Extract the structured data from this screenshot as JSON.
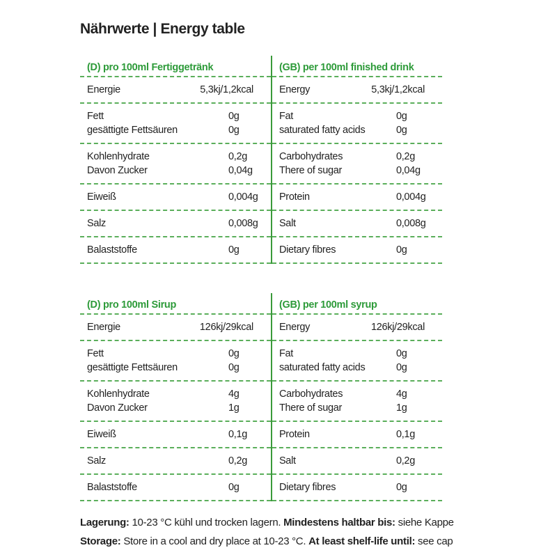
{
  "title": "Nährwerte | Energy table",
  "tables": [
    {
      "columns": [
        {
          "header": "(D) pro 100ml Fertiggetränk",
          "groups": [
            [
              [
                "Energie",
                "5,3kj/1,2kcal"
              ]
            ],
            [
              [
                "Fett",
                "0g"
              ],
              [
                "gesättigte Fettsäuren",
                "0g"
              ]
            ],
            [
              [
                "Kohlenhydrate",
                "0,2g"
              ],
              [
                "Davon Zucker",
                "0,04g"
              ]
            ],
            [
              [
                "Eiweiß",
                "0,004g"
              ]
            ],
            [
              [
                "Salz",
                "0,008g"
              ]
            ],
            [
              [
                "Balaststoffe",
                "0g"
              ]
            ]
          ]
        },
        {
          "header": "(GB) per 100ml finished drink",
          "groups": [
            [
              [
                "Energy",
                "5,3kj/1,2kcal"
              ]
            ],
            [
              [
                "Fat",
                "0g"
              ],
              [
                "saturated fatty acids",
                "0g"
              ]
            ],
            [
              [
                "Carbohydrates",
                "0,2g"
              ],
              [
                "There of sugar",
                "0,04g"
              ]
            ],
            [
              [
                "Protein",
                "0,004g"
              ]
            ],
            [
              [
                "Salt",
                "0,008g"
              ]
            ],
            [
              [
                "Dietary fibres",
                "0g"
              ]
            ]
          ]
        }
      ]
    },
    {
      "columns": [
        {
          "header": "(D) pro 100ml Sirup",
          "groups": [
            [
              [
                "Energie",
                "126kj/29kcal"
              ]
            ],
            [
              [
                "Fett",
                "0g"
              ],
              [
                "gesättigte Fettsäuren",
                "0g"
              ]
            ],
            [
              [
                "Kohlenhydrate",
                "4g"
              ],
              [
                "Davon Zucker",
                "1g"
              ]
            ],
            [
              [
                "Eiweiß",
                "0,1g"
              ]
            ],
            [
              [
                "Salz",
                "0,2g"
              ]
            ],
            [
              [
                "Balaststoffe",
                "0g"
              ]
            ]
          ]
        },
        {
          "header": "(GB) per 100ml syrup",
          "groups": [
            [
              [
                "Energy",
                "126kj/29kcal"
              ]
            ],
            [
              [
                "Fat",
                "0g"
              ],
              [
                "saturated fatty acids",
                "0g"
              ]
            ],
            [
              [
                "Carbohydrates",
                "4g"
              ],
              [
                "There of sugar",
                "1g"
              ]
            ],
            [
              [
                "Protein",
                "0,1g"
              ]
            ],
            [
              [
                "Salt",
                "0,2g"
              ]
            ],
            [
              [
                "Dietary fibres",
                "0g"
              ]
            ]
          ]
        }
      ]
    }
  ],
  "footer": [
    [
      {
        "text": "Lagerung:",
        "bold": true
      },
      {
        "text": " 10-23 °C kühl und trocken lagern. ",
        "bold": false
      },
      {
        "text": "Mindestens haltbar bis:",
        "bold": true
      },
      {
        "text": " siehe Kappe",
        "bold": false
      }
    ],
    [
      {
        "text": "Storage:",
        "bold": true
      },
      {
        "text": " Store in a cool and dry place at 10-23 °C. ",
        "bold": false
      },
      {
        "text": "At least shelf-life until:",
        "bold": true
      },
      {
        "text": " see cap",
        "bold": false
      }
    ]
  ]
}
